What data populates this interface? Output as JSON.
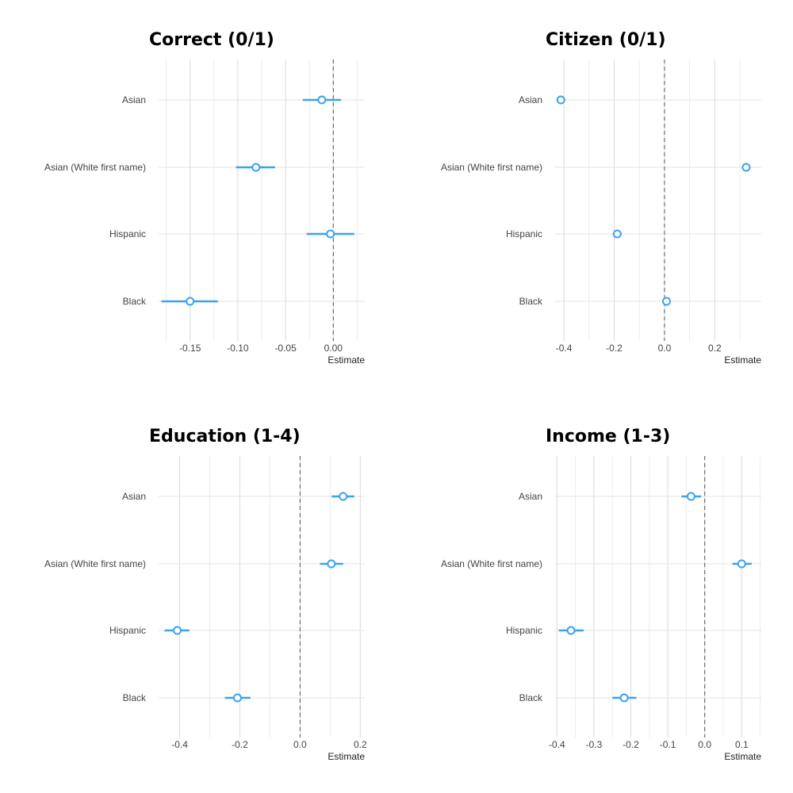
{
  "chart_data": [
    {
      "type": "scatter",
      "title": "Correct (0/1)",
      "xlabel": "Estimate",
      "ylabel": "",
      "categories": [
        "Asian",
        "Asian (White first name)",
        "Hispanic",
        "Black"
      ],
      "estimates": [
        -0.012,
        -0.081,
        -0.003,
        -0.15
      ],
      "ci_low": [
        -0.032,
        -0.102,
        -0.028,
        -0.18
      ],
      "ci_high": [
        0.008,
        -0.061,
        0.022,
        -0.121
      ],
      "xlim": [
        -0.183,
        0.033
      ],
      "xticks": [
        -0.15,
        -0.1,
        -0.05,
        0.0
      ],
      "xtick_labels": [
        "-0.15",
        "-0.10",
        "-0.05",
        "0.00"
      ],
      "xminor": [
        -0.175,
        -0.125,
        -0.075,
        -0.025,
        0.025
      ],
      "reference_line": 0,
      "color": "#3aa2f2"
    },
    {
      "type": "scatter",
      "title": "Citizen (0/1)",
      "xlabel": "Estimate",
      "ylabel": "",
      "categories": [
        "Asian",
        "Asian (White first name)",
        "Hispanic",
        "Black"
      ],
      "estimates": [
        -0.412,
        0.325,
        -0.188,
        0.008
      ],
      "ci_low": [
        -0.425,
        0.31,
        -0.205,
        0.0
      ],
      "ci_high": [
        -0.398,
        0.34,
        -0.17,
        0.016
      ],
      "xlim": [
        -0.435,
        0.385
      ],
      "xticks": [
        -0.4,
        -0.2,
        0.0,
        0.2
      ],
      "xtick_labels": [
        "-0.4",
        "-0.2",
        "0.0",
        "0.2"
      ],
      "xminor": [
        -0.3,
        -0.1,
        0.1,
        0.3
      ],
      "reference_line": 0,
      "color": "#3aa2f2"
    },
    {
      "type": "scatter",
      "title": "Education (1-4)",
      "xlabel": "Estimate",
      "ylabel": "",
      "categories": [
        "Asian",
        "Asian (White first name)",
        "Hispanic",
        "Black"
      ],
      "estimates": [
        0.143,
        0.104,
        -0.408,
        -0.208
      ],
      "ci_low": [
        0.105,
        0.066,
        -0.45,
        -0.25
      ],
      "ci_high": [
        0.18,
        0.143,
        -0.368,
        -0.165
      ],
      "xlim": [
        -0.47,
        0.215
      ],
      "xticks": [
        -0.4,
        -0.2,
        0.0,
        0.2
      ],
      "xtick_labels": [
        "-0.4",
        "-0.2",
        "0.0",
        "0.2"
      ],
      "xminor": [
        -0.3,
        -0.1,
        0.1
      ],
      "reference_line": 0,
      "color": "#3aa2f2"
    },
    {
      "type": "scatter",
      "title": "Income (1-3)",
      "xlabel": "Estimate",
      "ylabel": "",
      "categories": [
        "Asian",
        "Asian (White first name)",
        "Hispanic",
        "Black"
      ],
      "estimates": [
        -0.037,
        0.1,
        -0.362,
        -0.218
      ],
      "ci_low": [
        -0.063,
        0.075,
        -0.395,
        -0.25
      ],
      "ci_high": [
        -0.01,
        0.127,
        -0.328,
        -0.185
      ],
      "xlim": [
        -0.405,
        0.153
      ],
      "xticks": [
        -0.4,
        -0.3,
        -0.2,
        -0.1,
        0.0,
        0.1
      ],
      "xtick_labels": [
        "-0.4",
        "-0.3",
        "-0.2",
        "-0.1",
        "0.0",
        "0.1"
      ],
      "xminor": [
        -0.35,
        -0.25,
        -0.15,
        -0.05,
        0.05,
        0.15
      ],
      "reference_line": 0,
      "color": "#3aa2f2"
    }
  ]
}
